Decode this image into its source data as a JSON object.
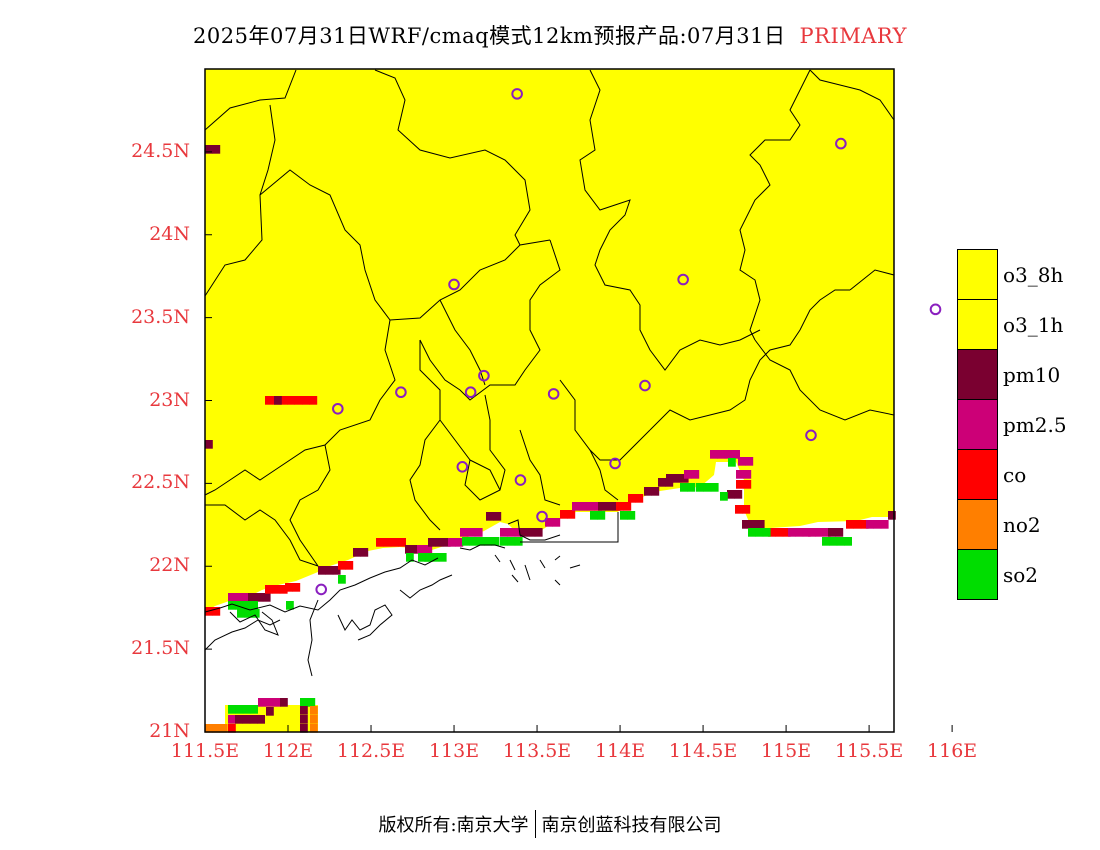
{
  "title": {
    "main": "2025年07月31日WRF/cmaq模式12km预报产品:07月31日",
    "tag": "PRIMARY"
  },
  "axes": {
    "lat_labels": [
      "24.5N",
      "24N",
      "23.5N",
      "23N",
      "22.5N",
      "22N",
      "21.5N",
      "21N"
    ],
    "lon_labels": [
      "111.5E",
      "112E",
      "112.5E",
      "113E",
      "113.5E",
      "114E",
      "114.5E",
      "115E",
      "115.5E",
      "116E"
    ],
    "lat_range": [
      21.0,
      25.0
    ],
    "lon_range": [
      111.5,
      115.65
    ],
    "label_color": "#e8383d"
  },
  "legend": {
    "items": [
      {
        "label": "o3_8h",
        "color": "#ffff00"
      },
      {
        "label": "o3_1h",
        "color": "#ffff00"
      },
      {
        "label": "pm10",
        "color": "#7a0030"
      },
      {
        "label": "pm2.5",
        "color": "#cc0077"
      },
      {
        "label": "co",
        "color": "#ff0000"
      },
      {
        "label": "no2",
        "color": "#ff7f00"
      },
      {
        "label": "so2",
        "color": "#00dd00"
      }
    ]
  },
  "colors": {
    "o3": "#ffff00",
    "pm10": "#7a0030",
    "pm25": "#cc0077",
    "co": "#ff0000",
    "no2": "#ff7f00",
    "so2": "#00dd00",
    "station": "#8a1fbf"
  },
  "cities": [
    {
      "lon": 113.38,
      "lat": 24.85
    },
    {
      "lon": 115.33,
      "lat": 24.55
    },
    {
      "lon": 113.0,
      "lat": 23.7
    },
    {
      "lon": 114.38,
      "lat": 23.73
    },
    {
      "lon": 115.9,
      "lat": 23.55
    },
    {
      "lon": 112.68,
      "lat": 23.05
    },
    {
      "lon": 113.1,
      "lat": 23.05
    },
    {
      "lon": 113.18,
      "lat": 23.15
    },
    {
      "lon": 113.6,
      "lat": 23.04
    },
    {
      "lon": 114.15,
      "lat": 23.09
    },
    {
      "lon": 112.3,
      "lat": 22.95
    },
    {
      "lon": 115.15,
      "lat": 22.79
    },
    {
      "lon": 113.05,
      "lat": 22.6
    },
    {
      "lon": 113.4,
      "lat": 22.52
    },
    {
      "lon": 113.97,
      "lat": 22.62
    },
    {
      "lon": 113.53,
      "lat": 22.3
    },
    {
      "lon": 112.2,
      "lat": 21.86
    }
  ],
  "footer": {
    "left": "版权所有:南京大学",
    "right": "南京创蓝科技有限公司"
  }
}
